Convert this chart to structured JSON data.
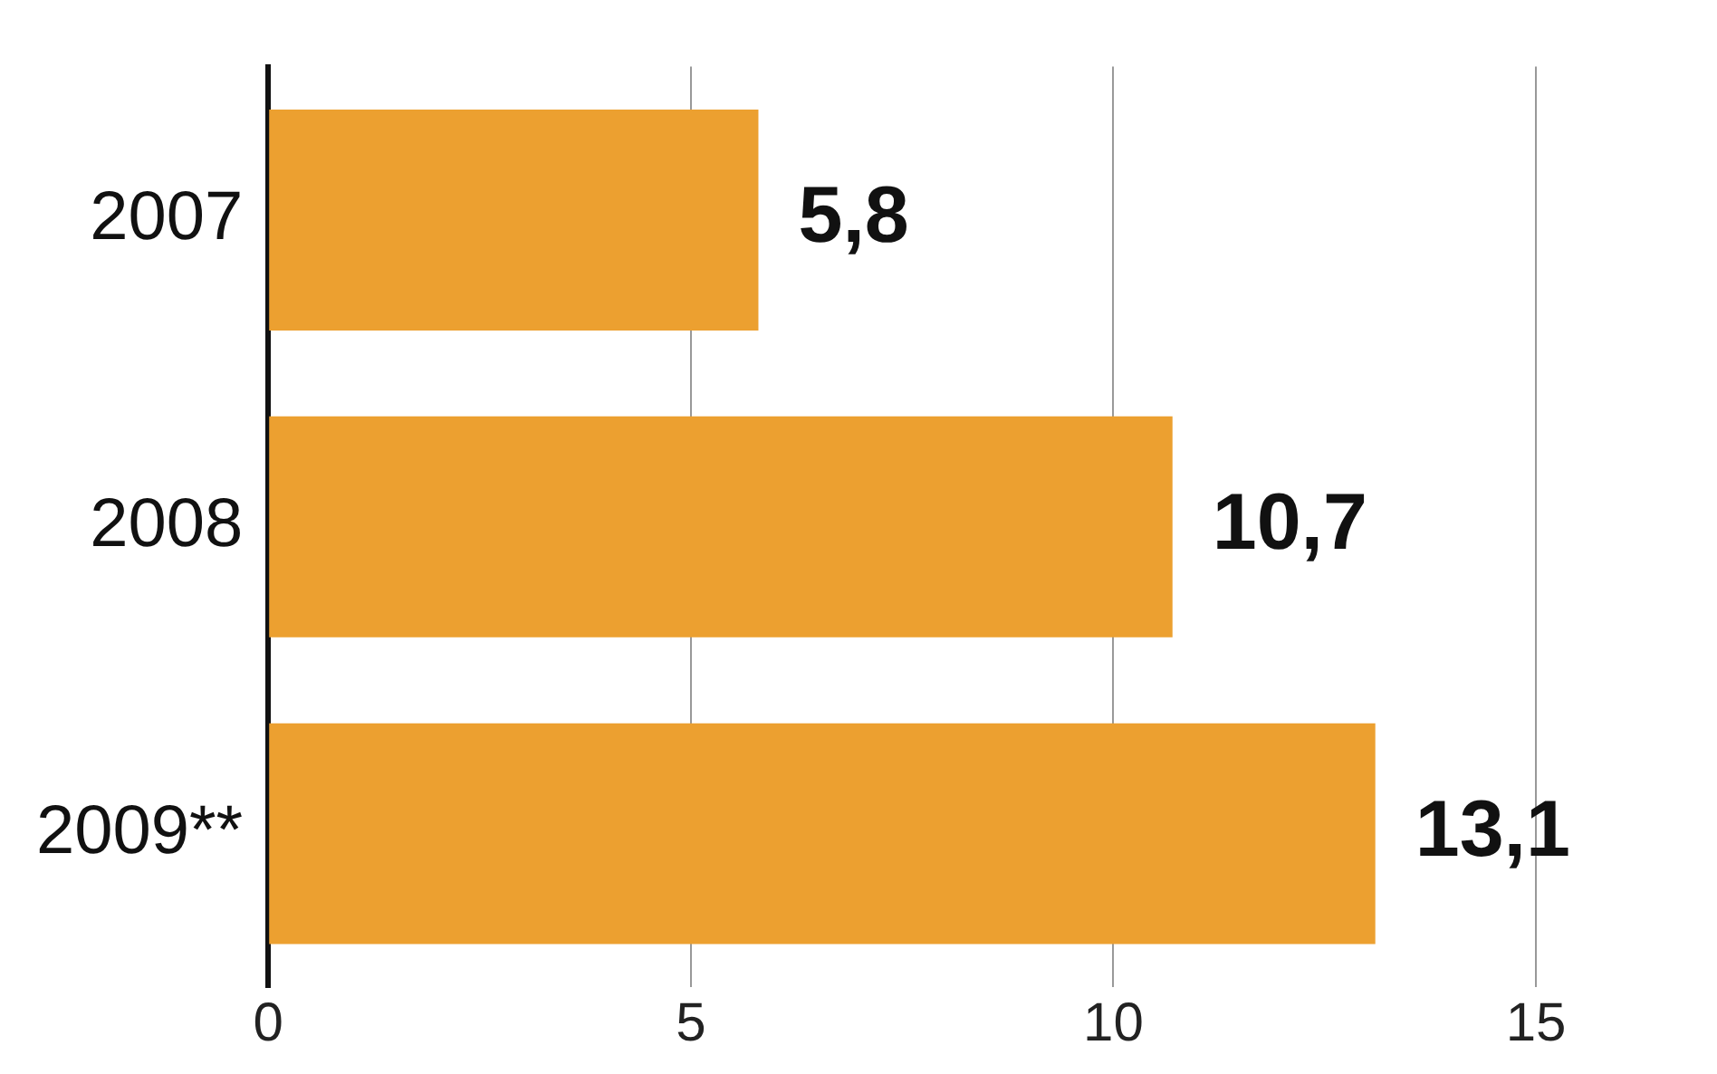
{
  "chart_data": {
    "type": "bar",
    "orientation": "horizontal",
    "categories": [
      "2007",
      "2008",
      "2009**"
    ],
    "values": [
      5.8,
      10.7,
      13.1
    ],
    "color": "#eca030",
    "value_labels": [
      "5,8",
      "10,7",
      "13,1"
    ],
    "xlim": [
      0,
      15
    ],
    "xticks": [
      0,
      5,
      10,
      15
    ],
    "grid": "x",
    "legend": false
  }
}
